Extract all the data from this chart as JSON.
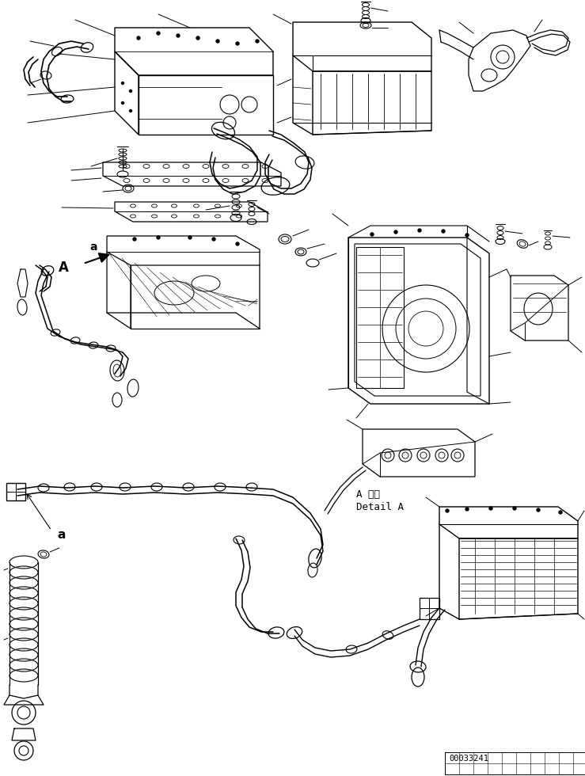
{
  "background_color": "#ffffff",
  "line_color": "#000000",
  "part_number": "00033241",
  "detail_text_jp": "A 詳細",
  "detail_text_en": "Detail A",
  "fig_width": 7.39,
  "fig_height": 9.8,
  "dpi": 100
}
